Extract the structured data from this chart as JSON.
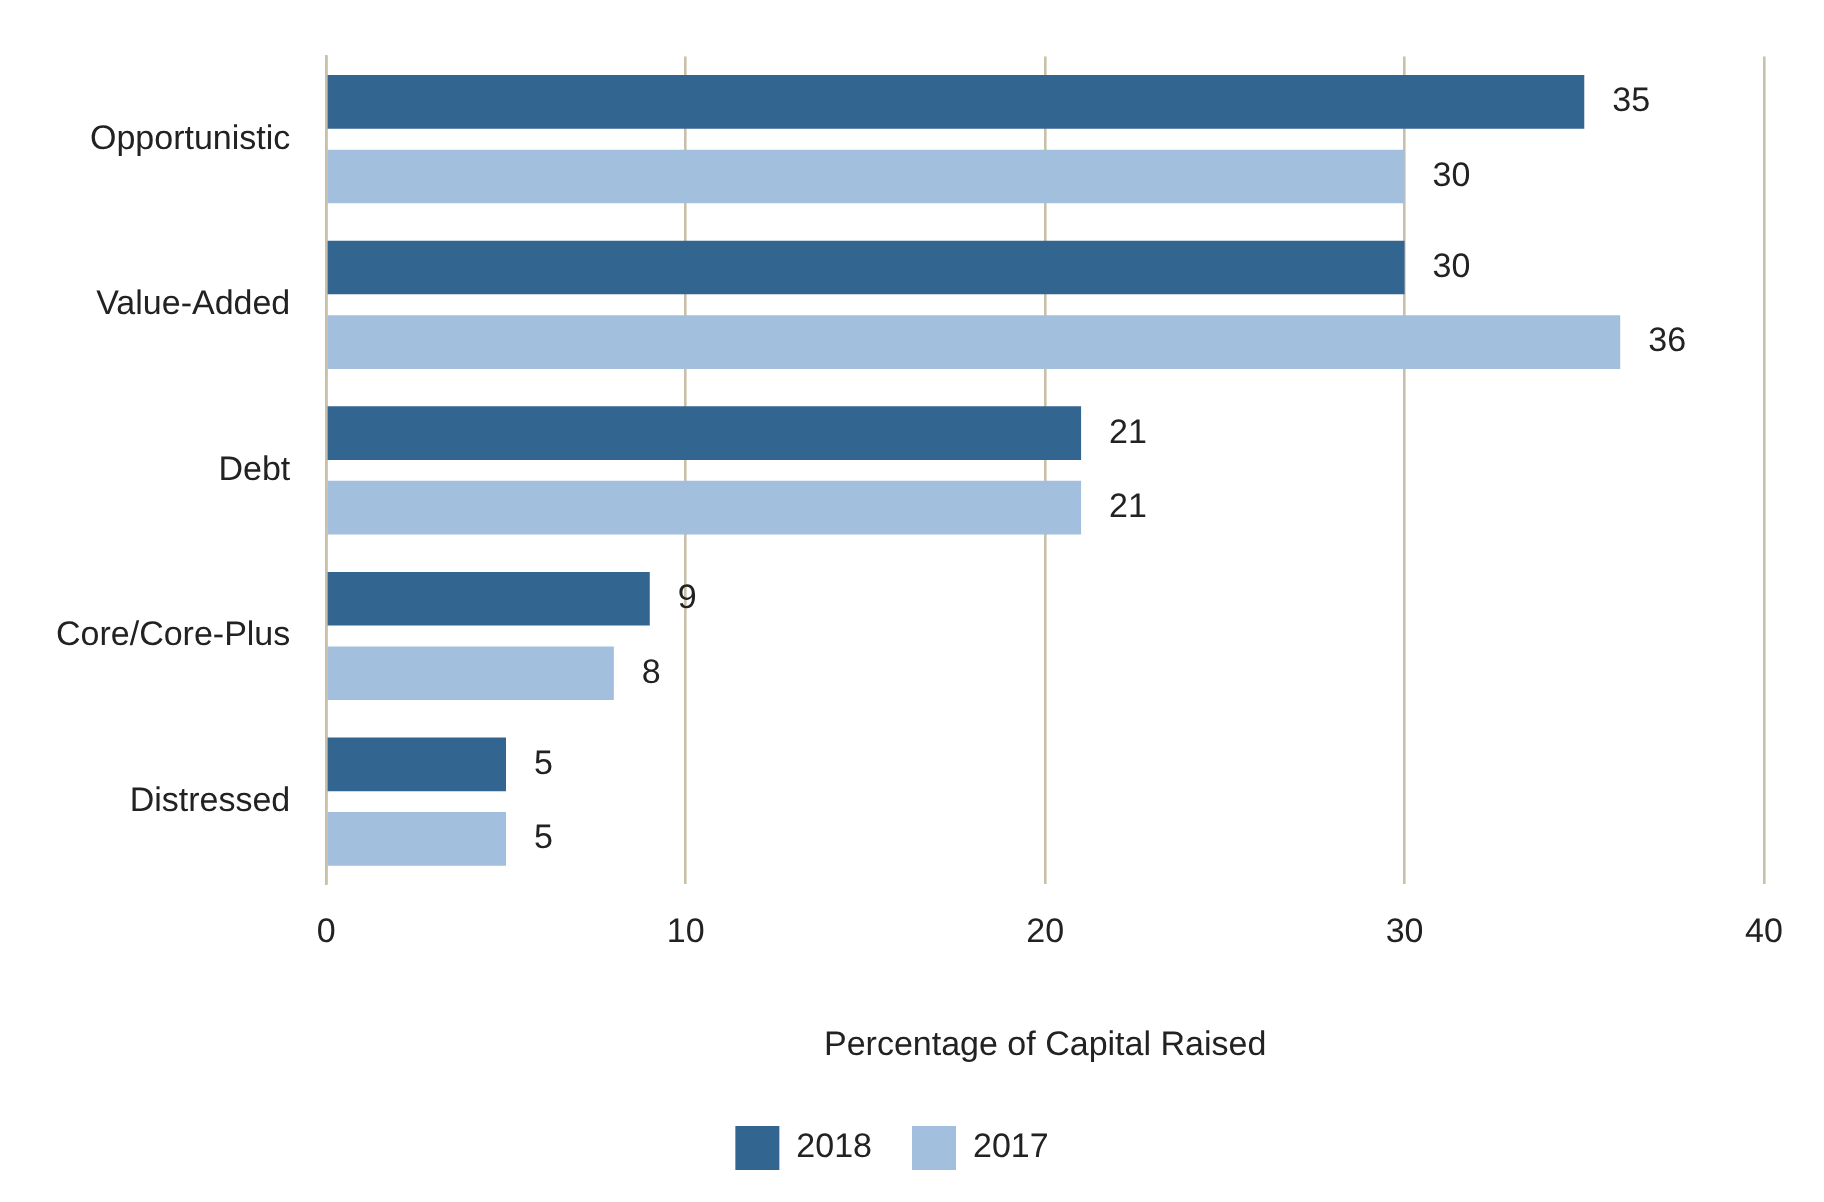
{
  "chart_data": {
    "type": "bar",
    "orientation": "horizontal",
    "xlabel": "Percentage of Capital Raised",
    "categories": [
      "Opportunistic",
      "Value-Added",
      "Debt",
      "Core/Core-Plus",
      "Distressed"
    ],
    "series": [
      {
        "name": "2018",
        "color": "#336591",
        "values": [
          35,
          30,
          21,
          9,
          5
        ]
      },
      {
        "name": "2017",
        "color": "#a2bfdd",
        "values": [
          30,
          36,
          21,
          8,
          5
        ]
      }
    ],
    "xlim": [
      0,
      40
    ],
    "xticks": [
      0,
      10,
      20,
      30,
      40
    ],
    "grid": "x",
    "legend": "bottom",
    "data_labels": true
  }
}
